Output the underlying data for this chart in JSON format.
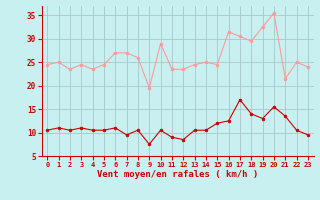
{
  "hours": [
    0,
    1,
    2,
    3,
    4,
    5,
    6,
    7,
    8,
    9,
    10,
    11,
    12,
    13,
    14,
    15,
    16,
    17,
    18,
    19,
    20,
    21,
    22,
    23
  ],
  "rafales": [
    24.5,
    25.0,
    23.5,
    24.5,
    23.5,
    24.5,
    27.0,
    27.0,
    26.0,
    19.5,
    29.0,
    23.5,
    23.5,
    24.5,
    25.0,
    24.5,
    31.5,
    30.5,
    29.5,
    32.5,
    35.5,
    21.5,
    25.0,
    24.0
  ],
  "moyen": [
    10.5,
    11.0,
    10.5,
    11.0,
    10.5,
    10.5,
    11.0,
    9.5,
    10.5,
    7.5,
    10.5,
    9.0,
    8.5,
    10.5,
    10.5,
    12.0,
    12.5,
    17.0,
    14.0,
    13.0,
    15.5,
    13.5,
    10.5,
    9.5
  ],
  "bg_color": "#c8f0f0",
  "grid_color": "#a8c8c8",
  "rafales_color": "#ff9999",
  "moyen_color": "#cc0000",
  "xlabel": "Vent moyen/en rafales ( km/h )",
  "xlabel_color": "#cc0000",
  "tick_color": "#cc0000",
  "ylim": [
    5,
    37
  ],
  "yticks": [
    5,
    10,
    15,
    20,
    25,
    30,
    35
  ],
  "xlim": [
    -0.5,
    23.5
  ]
}
